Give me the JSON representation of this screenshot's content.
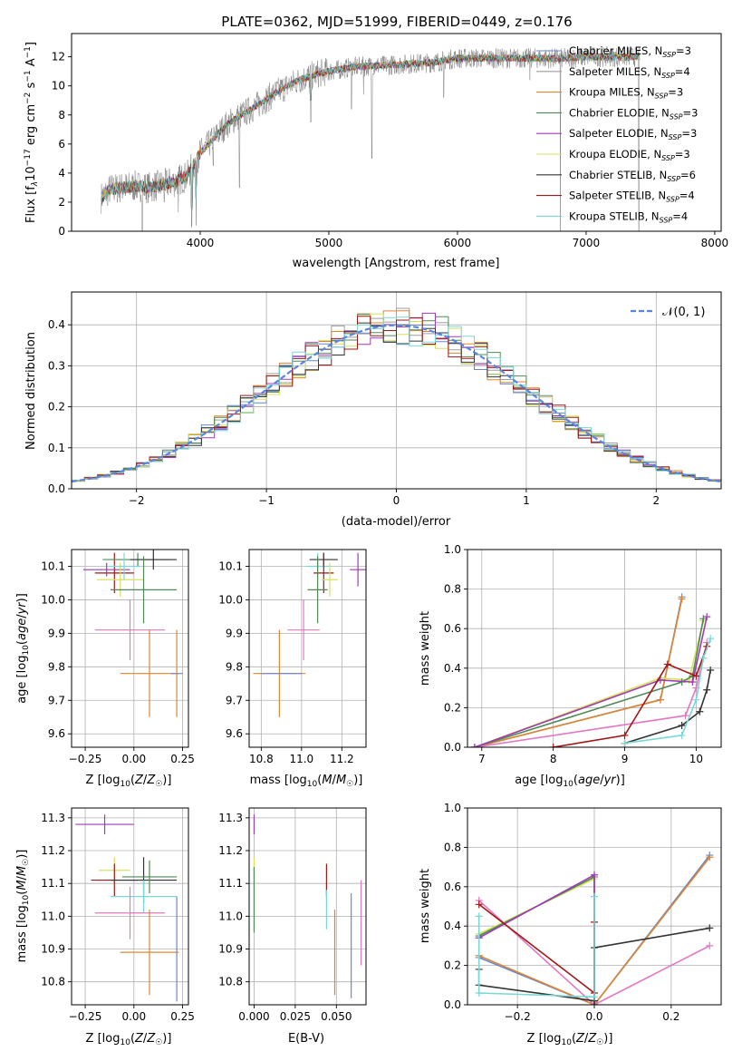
{
  "chart_data": [
    {
      "id": "spectrum",
      "type": "line",
      "title": "PLATE=0362, MJD=51999, FIBERID=0449, z=0.176",
      "xlabel": "wavelength [Angstrom, rest frame]",
      "ylabel": "Flux [f_λ10^-17 erg cm^-2 s^-1 A^-1]",
      "xlim": [
        3000,
        8050
      ],
      "ylim": [
        0,
        13.6
      ],
      "xticks": [
        4000,
        5000,
        6000,
        7000,
        8000
      ],
      "yticks": [
        0,
        2,
        4,
        6,
        8,
        10,
        12
      ],
      "data_range": [
        3230,
        7420
      ],
      "legend_position": "top-right",
      "continuum": {
        "x": [
          3230,
          3300,
          3500,
          3600,
          3700,
          3800,
          3900,
          3950,
          4000,
          4100,
          4200,
          4300,
          4400,
          4500,
          4600,
          4700,
          4800,
          4900,
          5000,
          5200,
          5400,
          5600,
          5800,
          6000,
          6200,
          6400,
          6600,
          6800,
          7000,
          7200,
          7420
        ],
        "y": [
          2.3,
          2.9,
          3.1,
          3.0,
          3.2,
          3.4,
          3.8,
          4.6,
          5.4,
          6.3,
          7.3,
          7.9,
          8.4,
          9.0,
          9.6,
          10.1,
          10.5,
          10.8,
          11.0,
          11.3,
          11.4,
          11.5,
          11.6,
          11.9,
          11.9,
          11.9,
          11.9,
          11.9,
          12.0,
          12.0,
          12.0
        ]
      },
      "series": [
        {
          "name": "Chabrier MILES, N_SSP=3",
          "color": "#6788cf"
        },
        {
          "name": "Salpeter MILES, N_SSP=4",
          "color": "#9e9e9e"
        },
        {
          "name": "Kroupa MILES, N_SSP=3",
          "color": "#e0852f"
        },
        {
          "name": "Chabrier ELODIE, N_SSP=3",
          "color": "#4f8a55"
        },
        {
          "name": "Salpeter ELODIE, N_SSP=3",
          "color": "#a03ab8"
        },
        {
          "name": "Kroupa ELODIE, N_SSP=3",
          "color": "#d8e05c"
        },
        {
          "name": "Chabrier STELIB, N_SSP=6",
          "color": "#333333"
        },
        {
          "name": "Salpeter STELIB, N_SSP=4",
          "color": "#a01818"
        },
        {
          "name": "Kroupa STELIB, N_SSP=4",
          "color": "#79d7d5"
        }
      ]
    },
    {
      "id": "residuals",
      "type": "histogram",
      "xlabel": "(data-model)/error",
      "ylabel": "Normed distribution",
      "xlim": [
        -2.5,
        2.5
      ],
      "ylim": [
        0,
        0.48
      ],
      "xticks": [
        -2,
        -1,
        0,
        1,
        2
      ],
      "yticks": [
        0,
        0.1,
        0.2,
        0.3,
        0.4
      ],
      "grid": true,
      "bin_width": 0.1,
      "gaussian_label": "𝒩(0, 1)",
      "gaussian_color": "#5b84dd",
      "legend_position": "top-right"
    },
    {
      "id": "age_vs_Z",
      "type": "scatter",
      "xlabel": "Z [log10(Z/Z☉)]",
      "ylabel": "age  [log10(age/yr)]",
      "xlim": [
        -0.32,
        0.28
      ],
      "ylim": [
        9.56,
        10.15
      ],
      "xticks": [
        -0.25,
        0.0,
        0.25
      ],
      "xticklabels": [
        "−0.25",
        "0.00",
        "0.25"
      ],
      "yticks": [
        9.6,
        9.7,
        9.8,
        9.9,
        10.0,
        10.1
      ],
      "grid": true,
      "points": [
        {
          "x": -0.1,
          "xerr": 0.1,
          "y": 10.08,
          "yerr": 0.06,
          "color": "#a01818"
        },
        {
          "x": 0.02,
          "xerr": 0.18,
          "y": 10.12,
          "yerr": 0.02,
          "color": "#4f8a55"
        },
        {
          "x": 0.1,
          "xerr": 0.12,
          "y": 10.12,
          "yerr": 0.03,
          "color": "#333333"
        },
        {
          "x": -0.14,
          "xerr": 0.12,
          "y": 10.09,
          "yerr": 0.02,
          "color": "#a03ab8"
        },
        {
          "x": -0.07,
          "xerr": 0.12,
          "y": 10.06,
          "yerr": 0.05,
          "color": "#d8e05c"
        },
        {
          "x": -0.05,
          "xerr": 0.08,
          "y": 10.1,
          "yerr": 0.04,
          "color": "#79d7d5"
        },
        {
          "x": 0.05,
          "xerr": 0.17,
          "y": 10.03,
          "yerr": 0.1,
          "color": "#4f8a55"
        },
        {
          "x": -0.02,
          "xerr": 0.18,
          "y": 9.91,
          "yerr": 0.09,
          "color": "#e377c2"
        },
        {
          "x": 0.08,
          "xerr": 0.15,
          "y": 9.78,
          "yerr": 0.13,
          "color": "#e0852f"
        },
        {
          "x": 0.22,
          "xerr": 0.03,
          "y": 9.78,
          "yerr": 0.0,
          "color": "#6788cf"
        },
        {
          "x": 0.22,
          "xerr": 0.0,
          "y": 9.78,
          "yerr": 0.13,
          "color": "#e0852f"
        }
      ]
    },
    {
      "id": "age_vs_mass",
      "type": "scatter",
      "xlabel": "mass [log10(M/M☉)]",
      "ylabel": "",
      "xlim": [
        10.74,
        11.32
      ],
      "ylim": [
        9.56,
        10.15
      ],
      "xticks": [
        10.8,
        11.0,
        11.2
      ],
      "yticks": [
        9.6,
        9.7,
        9.8,
        9.9,
        10.0,
        10.1
      ],
      "grid": true,
      "points": [
        {
          "x": 11.11,
          "xerr": 0.07,
          "y": 10.12,
          "yerr": 0.02,
          "color": "#333333"
        },
        {
          "x": 11.08,
          "xerr": 0.06,
          "y": 10.1,
          "yerr": 0.04,
          "color": "#79d7d5"
        },
        {
          "x": 11.11,
          "xerr": 0.05,
          "y": 10.08,
          "yerr": 0.06,
          "color": "#a01818"
        },
        {
          "x": 11.28,
          "xerr": 0.04,
          "y": 10.09,
          "yerr": 0.05,
          "color": "#a03ab8"
        },
        {
          "x": 11.14,
          "xerr": 0.04,
          "y": 10.06,
          "yerr": 0.05,
          "color": "#d8e05c"
        },
        {
          "x": 11.08,
          "xerr": 0.05,
          "y": 10.03,
          "yerr": 0.1,
          "color": "#4f8a55"
        },
        {
          "x": 11.01,
          "xerr": 0.08,
          "y": 9.91,
          "yerr": 0.09,
          "color": "#e377c2"
        },
        {
          "x": 10.89,
          "xerr": 0.13,
          "y": 9.78,
          "yerr": 0.13,
          "color": "#e0852f"
        },
        {
          "x": 10.9,
          "xerr": 0.1,
          "y": 9.78,
          "yerr": 0.0,
          "color": "#6788cf"
        }
      ]
    },
    {
      "id": "weight_vs_age",
      "type": "line",
      "xlabel": "age  [log10(age/yr)]",
      "ylabel": "mass weight",
      "xlim": [
        6.8,
        10.35
      ],
      "ylim": [
        0,
        1.0
      ],
      "xticks": [
        7,
        8,
        9,
        10
      ],
      "yticks": [
        0.0,
        0.2,
        0.4,
        0.6,
        0.8,
        1.0
      ],
      "grid": true,
      "series": [
        {
          "color": "#6788cf",
          "x": [
            6.9,
            9.5,
            9.8
          ],
          "y": [
            0.0,
            0.24,
            0.76
          ]
        },
        {
          "color": "#e0852f",
          "x": [
            6.9,
            9.5,
            9.8
          ],
          "y": [
            0.0,
            0.24,
            0.75
          ]
        },
        {
          "color": "#e377c2",
          "x": [
            6.9,
            9.85,
            10.0,
            10.15
          ],
          "y": [
            0.0,
            0.16,
            0.3,
            0.53
          ]
        },
        {
          "color": "#d8e05c",
          "x": [
            6.9,
            9.5,
            9.9,
            10.1
          ],
          "y": [
            0.0,
            0.35,
            0.34,
            0.64
          ]
        },
        {
          "color": "#4f8a55",
          "x": [
            6.9,
            9.8,
            9.95,
            10.1
          ],
          "y": [
            0.0,
            0.33,
            0.36,
            0.65
          ]
        },
        {
          "color": "#a03ab8",
          "x": [
            6.9,
            9.5,
            9.95,
            10.15
          ],
          "y": [
            0.0,
            0.34,
            0.33,
            0.66
          ]
        },
        {
          "color": "#a01818",
          "x": [
            8.0,
            9.0,
            9.6,
            10.0,
            10.15
          ],
          "y": [
            0.0,
            0.06,
            0.42,
            0.36,
            0.51
          ]
        },
        {
          "color": "#333333",
          "x": [
            9.0,
            9.8,
            10.05,
            10.15,
            10.2
          ],
          "y": [
            0.02,
            0.11,
            0.18,
            0.29,
            0.39
          ]
        },
        {
          "color": "#79d7d5",
          "x": [
            9.0,
            9.8,
            10.0,
            10.1,
            10.2
          ],
          "y": [
            0.02,
            0.06,
            0.24,
            0.45,
            0.55
          ]
        }
      ]
    },
    {
      "id": "mass_vs_Z",
      "type": "scatter",
      "xlabel": "Z [log10(Z/Z☉)]",
      "ylabel": "mass [log10(M/M☉)]",
      "xlim": [
        -0.32,
        0.28
      ],
      "ylim": [
        10.73,
        11.33
      ],
      "xticks": [
        -0.25,
        0.0,
        0.25
      ],
      "xticklabels": [
        "−0.25",
        "0.00",
        "0.25"
      ],
      "yticks": [
        10.8,
        10.9,
        11.0,
        11.1,
        11.2,
        11.3
      ],
      "grid": true,
      "points": [
        {
          "x": -0.15,
          "xerr": 0.15,
          "y": 11.28,
          "yerr": 0.03,
          "color": "#a03ab8"
        },
        {
          "x": -0.1,
          "xerr": 0.08,
          "y": 11.14,
          "yerr": 0.04,
          "color": "#d8e05c"
        },
        {
          "x": -0.1,
          "xerr": 0.12,
          "y": 11.11,
          "yerr": 0.05,
          "color": "#a01818"
        },
        {
          "x": 0.05,
          "xerr": 0.17,
          "y": 11.11,
          "yerr": 0.07,
          "color": "#333333"
        },
        {
          "x": 0.08,
          "xerr": 0.14,
          "y": 11.12,
          "yerr": 0.05,
          "color": "#4f8a55"
        },
        {
          "x": 0.05,
          "xerr": 0.17,
          "y": 11.06,
          "yerr": 0.05,
          "color": "#79d7d5"
        },
        {
          "x": -0.02,
          "xerr": 0.18,
          "y": 11.01,
          "yerr": 0.08,
          "color": "#e377c2"
        },
        {
          "x": 0.08,
          "xerr": 0.15,
          "y": 10.89,
          "yerr": 0.13,
          "color": "#e0852f"
        },
        {
          "x": 0.22,
          "xerr": 0.0,
          "y": 10.9,
          "yerr": 0.16,
          "color": "#6788cf"
        }
      ]
    },
    {
      "id": "mass_vs_ebv",
      "type": "scatter",
      "xlabel": "E(B-V)",
      "ylabel": "",
      "xlim": [
        -0.003,
        0.068
      ],
      "ylim": [
        10.73,
        11.33
      ],
      "xticks": [
        0.0,
        0.025,
        0.05
      ],
      "xticklabels": [
        "0.000",
        "0.025",
        "0.050"
      ],
      "yticks": [
        10.8,
        10.9,
        11.0,
        11.1,
        11.2,
        11.3
      ],
      "grid": true,
      "points": [
        {
          "x": 0.0,
          "xerr": 0.0,
          "y": 11.28,
          "yerr": 0.03,
          "color": "#a03ab8"
        },
        {
          "x": 0.0,
          "xerr": 0.0,
          "y": 11.14,
          "yerr": 0.04,
          "color": "#d8e05c"
        },
        {
          "x": 0.0,
          "xerr": 0.0,
          "y": 11.05,
          "yerr": 0.1,
          "color": "#4f8a55"
        },
        {
          "x": 0.044,
          "xerr": 0.0,
          "y": 11.11,
          "yerr": 0.05,
          "color": "#a01818"
        },
        {
          "x": 0.044,
          "xerr": 0.0,
          "y": 11.02,
          "yerr": 0.06,
          "color": "#79d7d5"
        },
        {
          "x": 0.049,
          "xerr": 0.0,
          "y": 10.89,
          "yerr": 0.13,
          "color": "#e0852f"
        },
        {
          "x": 0.059,
          "xerr": 0.0,
          "y": 10.91,
          "yerr": 0.16,
          "color": "#6788cf"
        },
        {
          "x": 0.065,
          "xerr": 0.0,
          "y": 10.98,
          "yerr": 0.13,
          "color": "#e377c2"
        }
      ]
    },
    {
      "id": "weight_vs_Z",
      "type": "line",
      "xlabel": "Z [log10(Z/Z☉)]",
      "ylabel": "mass weight",
      "xlim": [
        -0.33,
        0.33
      ],
      "ylim": [
        0,
        1.0
      ],
      "xticks": [
        -0.2,
        0.0,
        0.2
      ],
      "xticklabels": [
        "−0.2",
        "0.0",
        "0.2"
      ],
      "yticks": [
        0.0,
        0.2,
        0.4,
        0.6,
        0.8,
        1.0
      ],
      "grid": true,
      "series": [
        {
          "color": "#6788cf",
          "x": [
            -0.3,
            0.0,
            0.3
          ],
          "y": [
            0.24,
            0.0,
            0.76
          ]
        },
        {
          "color": "#e0852f",
          "x": [
            -0.3,
            0.0,
            0.3
          ],
          "y": [
            0.25,
            0.0,
            0.75
          ]
        },
        {
          "color": "#e377c2",
          "x": [
            -0.3,
            0.0,
            0.3
          ],
          "y": [
            0.53,
            0.0,
            0.3
          ]
        },
        {
          "color": "#d8e05c",
          "x": [
            -0.3,
            0.0,
            0.0
          ],
          "y": [
            0.36,
            0.64,
            0.0
          ]
        },
        {
          "color": "#4f8a55",
          "x": [
            -0.3,
            0.0,
            0.0
          ],
          "y": [
            0.35,
            0.65,
            0.0
          ]
        },
        {
          "color": "#a03ab8",
          "x": [
            -0.3,
            0.0,
            0.0
          ],
          "y": [
            0.34,
            0.66,
            0.0
          ]
        },
        {
          "color": "#a01818",
          "x": [
            -0.3,
            0.0,
            0.0
          ],
          "y": [
            0.51,
            0.06,
            0.42
          ]
        },
        {
          "color": "#333333",
          "x": [
            -0.3,
            -0.3,
            0.0,
            0.0,
            0.3
          ],
          "y": [
            0.18,
            0.1,
            0.02,
            0.29,
            0.39
          ]
        },
        {
          "color": "#79d7d5",
          "x": [
            -0.3,
            -0.3,
            0.0,
            0.0
          ],
          "y": [
            0.45,
            0.06,
            0.04,
            0.55
          ]
        }
      ]
    }
  ]
}
